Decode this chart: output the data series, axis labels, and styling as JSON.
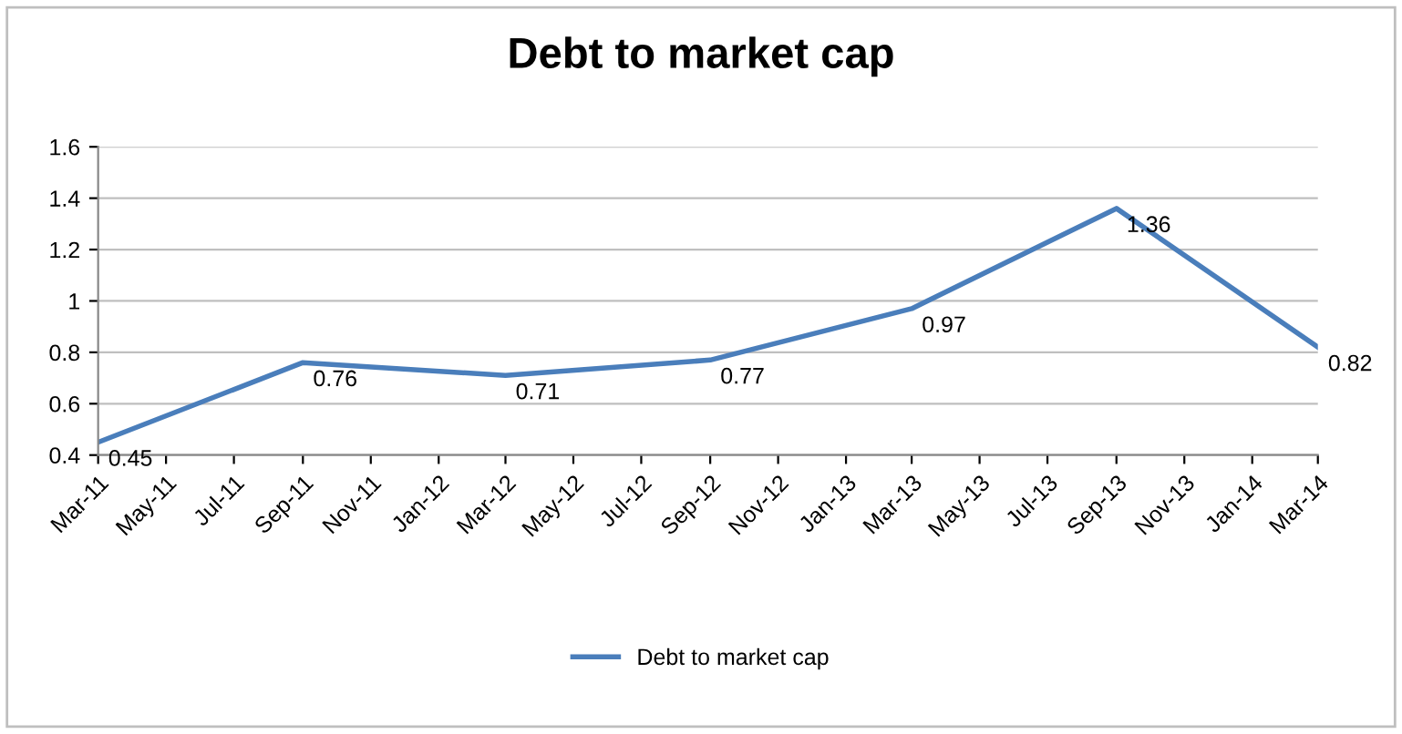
{
  "chart_data": {
    "type": "line",
    "title": "Debt to market cap",
    "x": [
      "2011-03",
      "2011-09",
      "2012-03",
      "2012-09",
      "2013-03",
      "2013-09",
      "2014-03"
    ],
    "series": [
      {
        "name": "Debt to market cap",
        "color": "#4a7ebb",
        "values": [
          0.45,
          0.76,
          0.71,
          0.77,
          0.97,
          1.36,
          0.82
        ]
      }
    ],
    "xlim": [
      "2011-03",
      "2014-03"
    ],
    "xticks": [
      {
        "value": "2011-03",
        "label": "Mar-11"
      },
      {
        "value": "2011-05",
        "label": "May-11"
      },
      {
        "value": "2011-07",
        "label": "Jul-11"
      },
      {
        "value": "2011-09",
        "label": "Sep-11"
      },
      {
        "value": "2011-11",
        "label": "Nov-11"
      },
      {
        "value": "2012-01",
        "label": "Jan-12"
      },
      {
        "value": "2012-03",
        "label": "Mar-12"
      },
      {
        "value": "2012-05",
        "label": "May-12"
      },
      {
        "value": "2012-07",
        "label": "Jul-12"
      },
      {
        "value": "2012-09",
        "label": "Sep-12"
      },
      {
        "value": "2012-11",
        "label": "Nov-12"
      },
      {
        "value": "2013-01",
        "label": "Jan-13"
      },
      {
        "value": "2013-03",
        "label": "Mar-13"
      },
      {
        "value": "2013-05",
        "label": "May-13"
      },
      {
        "value": "2013-07",
        "label": "Jul-13"
      },
      {
        "value": "2013-09",
        "label": "Sep-13"
      },
      {
        "value": "2013-11",
        "label": "Nov-13"
      },
      {
        "value": "2014-01",
        "label": "Jan-14"
      },
      {
        "value": "2014-03",
        "label": "Mar-14"
      }
    ],
    "ylim": [
      0.4,
      1.6
    ],
    "yticks": [
      0.4,
      0.6,
      0.8,
      1,
      1.2,
      1.4,
      1.6
    ],
    "grid": "y",
    "legend": "bottom",
    "data_labels": true,
    "marker": "none",
    "line_style": "solid"
  }
}
